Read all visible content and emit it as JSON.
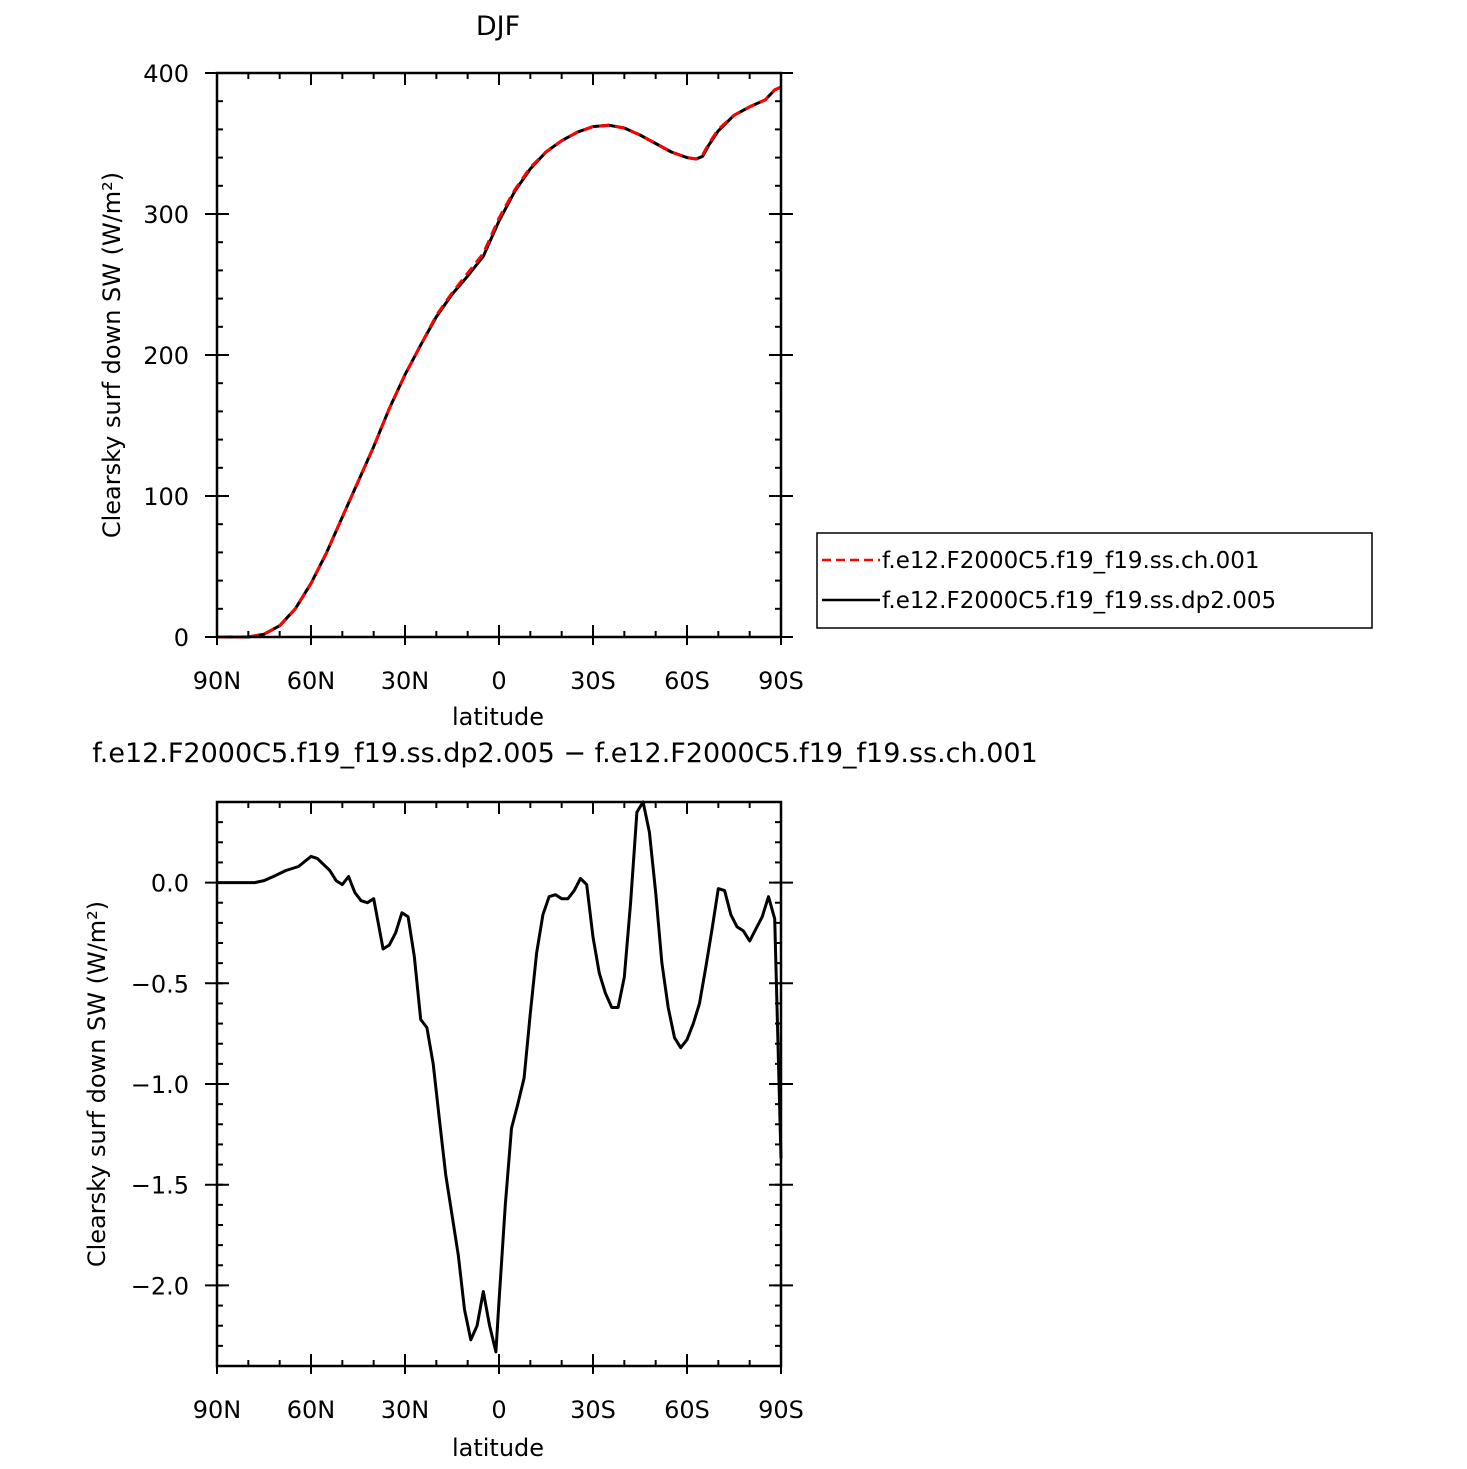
{
  "chart_data": [
    {
      "type": "line",
      "title": "DJF",
      "xlabel": "latitude",
      "ylabel": "Clearsky surf down SW (W/m²)",
      "xlim": [
        90,
        -90
      ],
      "ylim": [
        0,
        400
      ],
      "x_tick_labels": [
        "90N",
        "60N",
        "30N",
        "0",
        "30S",
        "60S",
        "90S"
      ],
      "y_tick_labels": [
        "0",
        "100",
        "200",
        "300",
        "400"
      ],
      "grid": false,
      "legend_position": "right",
      "x": [
        90,
        85,
        80,
        75,
        70,
        65,
        60,
        55,
        50,
        45,
        40,
        35,
        30,
        25,
        20,
        15,
        10,
        5,
        0,
        -5,
        -10,
        -15,
        -20,
        -25,
        -30,
        -35,
        -40,
        -45,
        -50,
        -55,
        -60,
        -63,
        -65,
        -67,
        -70,
        -75,
        -80,
        -85,
        -88,
        -90
      ],
      "series": [
        {
          "name": "f.e12.F2000C5.f19_f19.ss.ch.001",
          "color": "#ff0000",
          "style": "dashed",
          "values": [
            0,
            0,
            0,
            2,
            8,
            20,
            38,
            60,
            85,
            110,
            135,
            162,
            186,
            207,
            228,
            244,
            258,
            272,
            297,
            317,
            333,
            344,
            352,
            358,
            362,
            363,
            361,
            356,
            350,
            344,
            340,
            339,
            342,
            350,
            360,
            370,
            376,
            381,
            388,
            390
          ]
        },
        {
          "name": "f.e12.F2000C5.f19_f19.ss.dp2.005",
          "color": "#000000",
          "style": "solid",
          "values": [
            0,
            0,
            0,
            2,
            8,
            20,
            38,
            60,
            85,
            110,
            135,
            162,
            186,
            207,
            227,
            243,
            256,
            270,
            295,
            316,
            332,
            344,
            352,
            358,
            362,
            363,
            361,
            356,
            350,
            344,
            340,
            339,
            341,
            349,
            359,
            370,
            376,
            381,
            388,
            390
          ]
        }
      ]
    },
    {
      "type": "line",
      "title": "f.e12.F2000C5.f19_f19.ss.dp2.005 − f.e12.F2000C5.f19_f19.ss.ch.001",
      "xlabel": "latitude",
      "ylabel": "Clearsky surf down SW (W/m²)",
      "xlim": [
        90,
        -90
      ],
      "ylim": [
        -2.4,
        0.4
      ],
      "x_tick_labels": [
        "90N",
        "60N",
        "30N",
        "0",
        "30S",
        "60S",
        "90S"
      ],
      "y_tick_labels": [
        "0.0",
        "−0.5",
        "−1.0",
        "−1.5",
        "−2.0"
      ],
      "grid": false,
      "x": [
        90,
        78,
        75,
        72,
        68,
        64,
        60,
        58,
        56,
        54,
        52,
        50,
        48,
        47,
        46,
        44,
        42,
        40,
        37,
        35,
        33,
        31,
        29,
        27,
        25,
        23,
        21,
        19,
        17,
        15,
        13,
        11,
        9,
        7,
        5,
        3,
        1,
        0,
        -2,
        -4,
        -6,
        -8,
        -10,
        -12,
        -14,
        -16,
        -18,
        -20,
        -22,
        -24,
        -26,
        -28,
        -30,
        -32,
        -34,
        -36,
        -38,
        -40,
        -42,
        -43,
        -44,
        -46,
        -48,
        -50,
        -52,
        -54,
        -56,
        -58,
        -60,
        -62,
        -64,
        -66,
        -68,
        -70,
        -72,
        -74,
        -76,
        -78,
        -80,
        -82,
        -84,
        -86,
        -88,
        -90
      ],
      "series": [
        {
          "name": "",
          "color": "#000000",
          "style": "solid",
          "values": [
            0,
            0,
            0.01,
            0.03,
            0.06,
            0.08,
            0.13,
            0.12,
            0.09,
            0.06,
            0.01,
            -0.01,
            0.03,
            -0.01,
            -0.05,
            -0.09,
            -0.1,
            -0.08,
            -0.33,
            -0.31,
            -0.25,
            -0.15,
            -0.17,
            -0.37,
            -0.68,
            -0.72,
            -0.9,
            -1.18,
            -1.45,
            -1.65,
            -1.85,
            -2.12,
            -2.27,
            -2.2,
            -2.03,
            -2.2,
            -2.33,
            -2.08,
            -1.6,
            -1.22,
            -1.1,
            -0.97,
            -0.65,
            -0.35,
            -0.16,
            -0.07,
            -0.06,
            -0.08,
            -0.08,
            -0.04,
            0.02,
            -0.01,
            -0.27,
            -0.45,
            -0.55,
            -0.62,
            -0.62,
            -0.47,
            -0.1,
            0.12,
            0.35,
            0.4,
            0.25,
            -0.05,
            -0.4,
            -0.62,
            -0.77,
            -0.82,
            -0.78,
            -0.7,
            -0.6,
            -0.42,
            -0.23,
            -0.03,
            -0.04,
            -0.16,
            -0.22,
            -0.24,
            -0.29,
            -0.23,
            -0.17,
            -0.07,
            -0.18,
            -1.37
          ]
        }
      ]
    }
  ]
}
